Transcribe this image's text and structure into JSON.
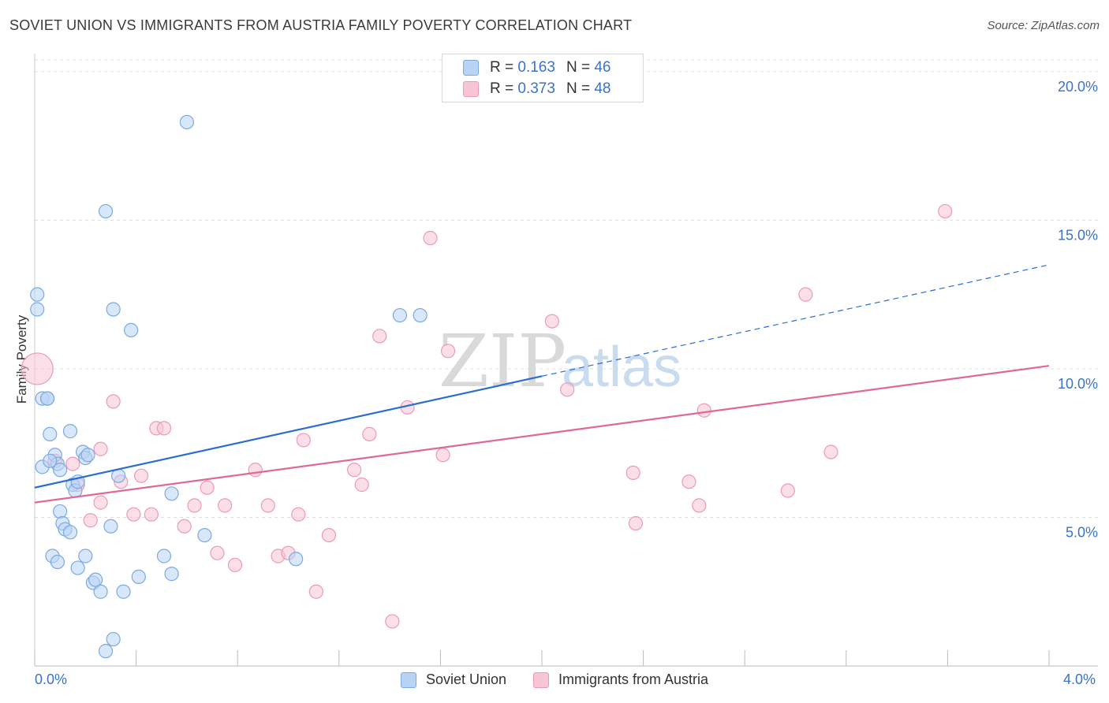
{
  "header": {
    "title": "SOVIET UNION VS IMMIGRANTS FROM AUSTRIA FAMILY POVERTY CORRELATION CHART",
    "source": "Source: ZipAtlas.com"
  },
  "watermark": {
    "zip": "ZIP",
    "atlas": "atlas"
  },
  "legend_top": [
    {
      "r_label": "R =",
      "r_value": "0.163",
      "n_label": "N =",
      "n_value": "46"
    },
    {
      "r_label": "R =",
      "r_value": "0.373",
      "n_label": "N =",
      "n_value": "48"
    }
  ],
  "colors": {
    "series1_fill": "#b9d3f5",
    "series1_stroke": "#7aaae0",
    "series1_line": "#2a6fcf",
    "series2_fill": "#f8c5d6",
    "series2_stroke": "#ec9ab6",
    "series2_line": "#e0679a",
    "grid": "#dddddd",
    "tick_text": "#3a73c6"
  },
  "chart_data": {
    "type": "scatter",
    "title": "SOVIET UNION VS IMMIGRANTS FROM AUSTRIA FAMILY POVERTY CORRELATION CHART",
    "xlabel": "",
    "ylabel": "Family Poverty",
    "xlim": [
      0,
      4.0
    ],
    "ylim": [
      0,
      20.5
    ],
    "x_tick_labels": [
      "0.0%",
      "4.0%"
    ],
    "y_ticks": [
      5,
      10,
      15,
      20
    ],
    "y_tick_labels": [
      "5.0%",
      "10.0%",
      "15.0%",
      "20.0%"
    ],
    "grid": true,
    "legend_position": "top-center",
    "series": [
      {
        "name": "Soviet Union",
        "r": 0.163,
        "n": 46,
        "trend": {
          "x0": 0.0,
          "y0": 6.0,
          "x1": 2.0,
          "y1": 9.75,
          "dashed_to_x": 4.0,
          "dashed_to_y": 13.5
        },
        "points": [
          [
            0.01,
            12.5
          ],
          [
            0.01,
            12.0
          ],
          [
            0.03,
            9.0
          ],
          [
            0.05,
            9.0
          ],
          [
            0.06,
            7.8
          ],
          [
            0.08,
            7.1
          ],
          [
            0.09,
            6.8
          ],
          [
            0.1,
            6.6
          ],
          [
            0.1,
            5.2
          ],
          [
            0.11,
            4.8
          ],
          [
            0.12,
            4.6
          ],
          [
            0.14,
            7.9
          ],
          [
            0.14,
            4.5
          ],
          [
            0.15,
            6.1
          ],
          [
            0.16,
            5.9
          ],
          [
            0.17,
            6.2
          ],
          [
            0.19,
            7.2
          ],
          [
            0.2,
            7.0
          ],
          [
            0.2,
            3.7
          ],
          [
            0.21,
            7.1
          ],
          [
            0.03,
            6.7
          ],
          [
            0.06,
            6.9
          ],
          [
            0.07,
            3.7
          ],
          [
            0.09,
            3.5
          ],
          [
            0.17,
            3.3
          ],
          [
            0.23,
            2.8
          ],
          [
            0.24,
            2.9
          ],
          [
            0.26,
            2.5
          ],
          [
            0.28,
            0.5
          ],
          [
            0.3,
            4.7
          ],
          [
            0.31,
            0.9
          ],
          [
            0.31,
            12.0
          ],
          [
            0.33,
            6.4
          ],
          [
            0.35,
            2.5
          ],
          [
            0.38,
            11.3
          ],
          [
            0.41,
            3.0
          ],
          [
            0.51,
            3.7
          ],
          [
            0.54,
            5.8
          ],
          [
            0.54,
            3.1
          ],
          [
            0.6,
            18.3
          ],
          [
            0.67,
            4.4
          ],
          [
            1.03,
            3.6
          ],
          [
            1.44,
            11.8
          ],
          [
            1.52,
            11.8
          ],
          [
            0.28,
            15.3
          ],
          [
            0.05,
            9.0
          ]
        ]
      },
      {
        "name": "Immigrants from Austria",
        "r": 0.373,
        "n": 48,
        "trend": {
          "x0": 0.0,
          "y0": 5.5,
          "x1": 4.0,
          "y1": 10.1
        },
        "points": [
          [
            0.01,
            10.0
          ],
          [
            0.08,
            6.9
          ],
          [
            0.15,
            6.8
          ],
          [
            0.17,
            6.1
          ],
          [
            0.22,
            4.9
          ],
          [
            0.26,
            7.3
          ],
          [
            0.26,
            5.5
          ],
          [
            0.31,
            8.9
          ],
          [
            0.34,
            6.2
          ],
          [
            0.39,
            5.1
          ],
          [
            0.42,
            6.4
          ],
          [
            0.46,
            5.1
          ],
          [
            0.48,
            8.0
          ],
          [
            0.51,
            8.0
          ],
          [
            0.59,
            4.7
          ],
          [
            0.63,
            5.4
          ],
          [
            0.68,
            6.0
          ],
          [
            0.72,
            3.8
          ],
          [
            0.75,
            5.4
          ],
          [
            0.79,
            3.4
          ],
          [
            0.87,
            6.6
          ],
          [
            0.92,
            5.4
          ],
          [
            0.96,
            3.7
          ],
          [
            1.0,
            3.8
          ],
          [
            1.04,
            5.1
          ],
          [
            1.06,
            7.6
          ],
          [
            1.11,
            2.5
          ],
          [
            1.16,
            4.4
          ],
          [
            1.26,
            6.6
          ],
          [
            1.29,
            6.1
          ],
          [
            1.32,
            7.8
          ],
          [
            1.36,
            11.1
          ],
          [
            1.41,
            1.5
          ],
          [
            1.47,
            8.7
          ],
          [
            1.56,
            14.4
          ],
          [
            1.61,
            7.1
          ],
          [
            1.63,
            10.6
          ],
          [
            2.04,
            11.6
          ],
          [
            2.1,
            9.3
          ],
          [
            2.36,
            6.5
          ],
          [
            2.37,
            4.8
          ],
          [
            2.58,
            6.2
          ],
          [
            2.62,
            5.4
          ],
          [
            2.64,
            8.6
          ],
          [
            2.97,
            5.9
          ],
          [
            3.04,
            12.5
          ],
          [
            3.14,
            7.2
          ],
          [
            3.59,
            15.3
          ]
        ]
      }
    ]
  },
  "legend_bottom": [
    "Soviet Union",
    "Immigrants from Austria"
  ]
}
